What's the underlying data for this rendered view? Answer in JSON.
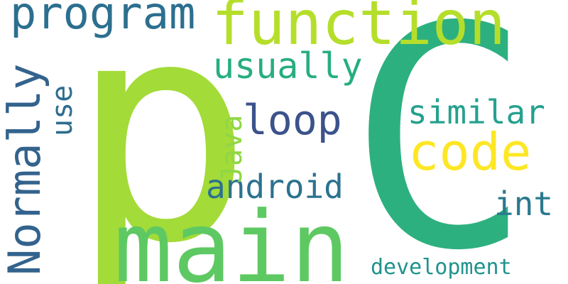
{
  "words": {
    "p": {
      "text": "p",
      "color": "#a3db38"
    },
    "c": {
      "text": "C",
      "color": "#2db07f"
    },
    "main": {
      "text": "main",
      "color": "#5ec962"
    },
    "function": {
      "text": "function",
      "color": "#b5de2b"
    },
    "program": {
      "text": "program",
      "color": "#2c6f8f"
    },
    "code": {
      "text": "code",
      "color": "#fde725"
    },
    "normally": {
      "text": "Normally",
      "color": "#33638d"
    },
    "loop": {
      "text": "loop",
      "color": "#3b528b"
    },
    "usually": {
      "text": "usually",
      "color": "#27ad81"
    },
    "similar": {
      "text": "similar",
      "color": "#25a18e"
    },
    "android": {
      "text": "android",
      "color": "#2c728e"
    },
    "int": {
      "text": "int",
      "color": "#2a788e"
    },
    "java": {
      "text": "Java",
      "color": "#8fd744"
    },
    "use": {
      "text": "use",
      "color": "#2f6c8e"
    },
    "development": {
      "text": "development",
      "color": "#20938c"
    }
  }
}
